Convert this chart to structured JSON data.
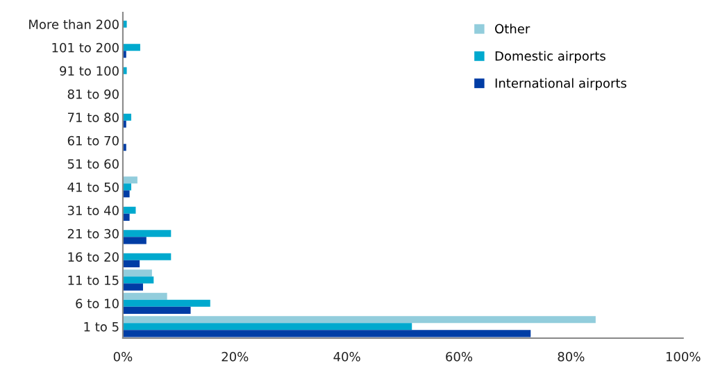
{
  "chart_data": {
    "type": "bar",
    "orientation": "horizontal",
    "categories": [
      "More than 200",
      "101 to 200",
      "91 to 100",
      "81 to 90",
      "71 to 80",
      "61 to 70",
      "51 to 60",
      "41 to 50",
      "31 to 40",
      "21 to 30",
      "16 to 20",
      "11 to 15",
      "6 to 10",
      "1 to 5"
    ],
    "series": [
      {
        "name": "Other",
        "color": "#92cddc",
        "values": [
          0,
          0,
          0,
          0,
          0,
          0,
          0,
          2.6,
          0,
          0,
          0,
          5.2,
          7.9,
          84.4
        ]
      },
      {
        "name": "Domestic airports",
        "color": "#00a9ce",
        "values": [
          0.7,
          3.1,
          0.7,
          0,
          1.5,
          0,
          0,
          1.5,
          2.3,
          8.6,
          8.6,
          5.5,
          15.6,
          51.6
        ]
      },
      {
        "name": "International airports",
        "color": "#003da5",
        "values": [
          0,
          0.6,
          0,
          0,
          0.6,
          0.6,
          0,
          1.2,
          1.2,
          4.2,
          3.0,
          3.6,
          12.1,
          72.8
        ]
      }
    ],
    "xlim": [
      0,
      100
    ],
    "xticks": [
      {
        "value": 0,
        "label": "0%"
      },
      {
        "value": 20,
        "label": "20%"
      },
      {
        "value": 40,
        "label": "40%"
      },
      {
        "value": 60,
        "label": "60%"
      },
      {
        "value": 80,
        "label": "80%"
      },
      {
        "value": 100,
        "label": "100%"
      }
    ],
    "grid": false,
    "legend": "top right"
  }
}
